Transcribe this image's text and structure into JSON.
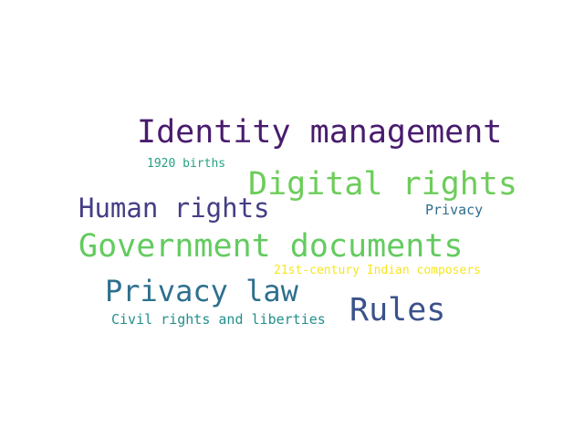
{
  "words": [
    {
      "id": "w-identity",
      "text": "Identity management",
      "color": "#481c6e"
    },
    {
      "id": "w-births",
      "text": "1920 births",
      "color": "#25a085"
    },
    {
      "id": "w-digital",
      "text": "Digital rights",
      "color": "#6ccd5a"
    },
    {
      "id": "w-human",
      "text": "Human rights",
      "color": "#433e85"
    },
    {
      "id": "w-privacy-s",
      "text": "Privacy",
      "color": "#2f6c8e"
    },
    {
      "id": "w-government",
      "text": "Government documents",
      "color": "#63cb5f"
    },
    {
      "id": "w-composers",
      "text": "21st-century Indian composers",
      "color": "#f6e620"
    },
    {
      "id": "w-privlaw",
      "text": "Privacy law",
      "color": "#2e6f8e"
    },
    {
      "id": "w-rules",
      "text": "Rules",
      "color": "#3b528b"
    },
    {
      "id": "w-civil",
      "text": "Civil rights and liberties",
      "color": "#22908d"
    }
  ]
}
